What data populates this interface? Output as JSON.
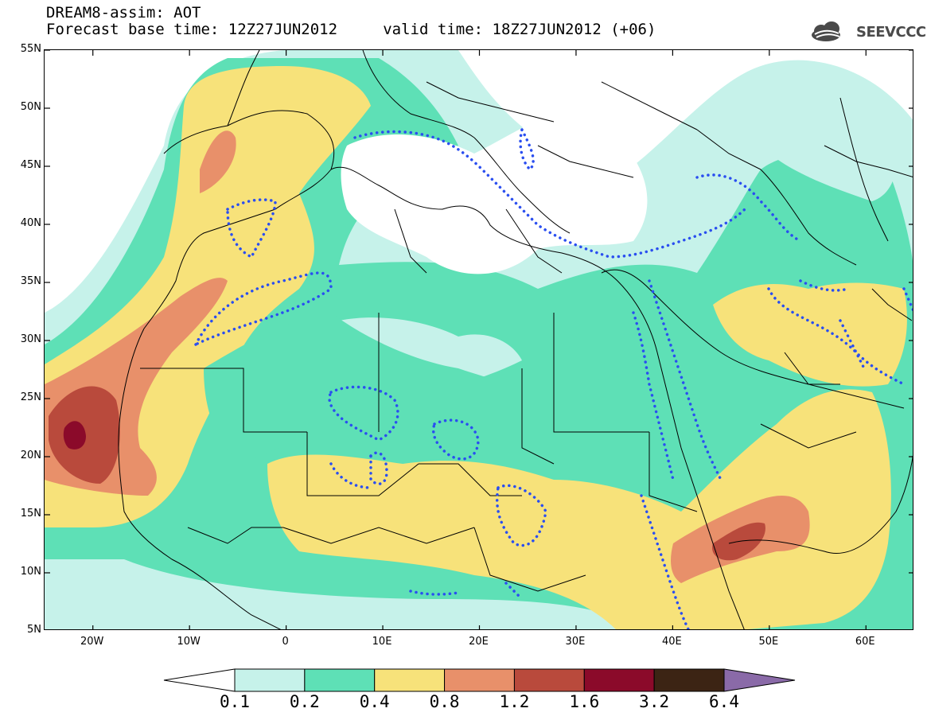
{
  "title": {
    "line1": "DREAM8-assim: AOT",
    "line2": "Forecast base time: 12Z27JUN2012     valid time: 18Z27JUN2012 (+06)"
  },
  "logo": {
    "text": "SEEVCCC",
    "icon": "cloud-icon"
  },
  "map": {
    "extent": {
      "lon_min": -25,
      "lon_max": 65,
      "lat_min": 5,
      "lat_max": 55
    },
    "lat_ticks": [
      {
        "value": 55,
        "label": "55N"
      },
      {
        "value": 50,
        "label": "50N"
      },
      {
        "value": 45,
        "label": "45N"
      },
      {
        "value": 40,
        "label": "40N"
      },
      {
        "value": 35,
        "label": "35N"
      },
      {
        "value": 30,
        "label": "30N"
      },
      {
        "value": 25,
        "label": "25N"
      },
      {
        "value": 20,
        "label": "20N"
      },
      {
        "value": 15,
        "label": "15N"
      },
      {
        "value": 10,
        "label": "10N"
      },
      {
        "value": 5,
        "label": "5N"
      }
    ],
    "lon_ticks": [
      {
        "value": -20,
        "label": "20W"
      },
      {
        "value": -10,
        "label": "10W"
      },
      {
        "value": 0,
        "label": "0"
      },
      {
        "value": 10,
        "label": "10E"
      },
      {
        "value": 20,
        "label": "20E"
      },
      {
        "value": 30,
        "label": "30E"
      },
      {
        "value": 40,
        "label": "40E"
      },
      {
        "value": 50,
        "label": "50E"
      },
      {
        "value": 60,
        "label": "60E"
      }
    ],
    "colors": {
      "c01": "#c6f2ea",
      "c02": "#5ee0b6",
      "c04": "#f7e27a",
      "c08": "#e8906a",
      "c12": "#b94a3c",
      "c16": "#8b0a2a",
      "c32": "#3c2414",
      "c64": "#8a6aa8",
      "contour": "#2a4ef0",
      "coast": "#000000"
    }
  },
  "colorbar": {
    "labels": [
      "0.1",
      "0.2",
      "0.4",
      "0.8",
      "1.2",
      "1.6",
      "3.2",
      "6.4"
    ],
    "colors": [
      "#ffffff",
      "#c6f2ea",
      "#5ee0b6",
      "#f7e27a",
      "#e8906a",
      "#b94a3c",
      "#8b0a2a",
      "#3c2414",
      "#8a6aa8"
    ]
  }
}
